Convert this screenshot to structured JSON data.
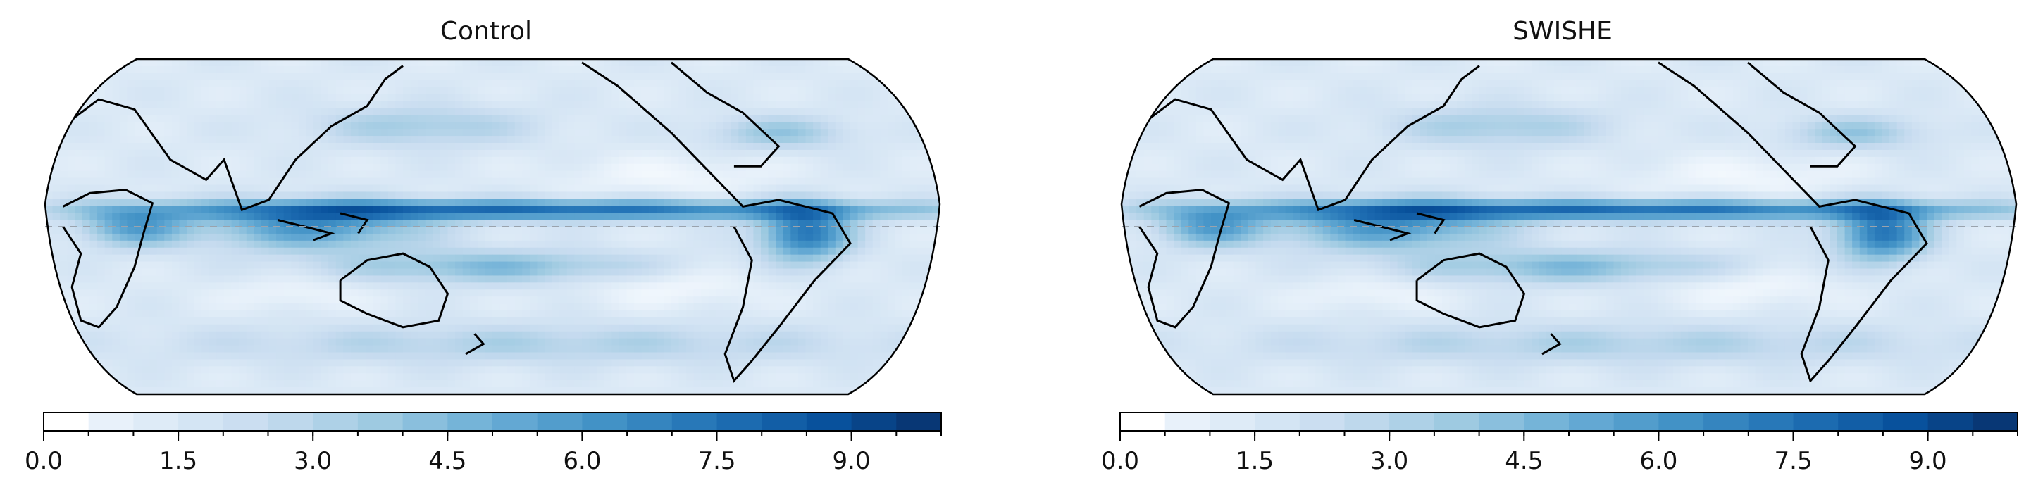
{
  "chart_data": [
    {
      "type": "heatmap",
      "title": "Control",
      "map_projection": "Robinson-like, Pacific-centered",
      "colormap": "Blues",
      "colorbar": {
        "orientation": "horizontal",
        "placement": "bottom",
        "range": [
          0.0,
          10.0
        ],
        "levels": [
          0.0,
          0.5,
          1.0,
          1.5,
          2.0,
          2.5,
          3.0,
          3.5,
          4.0,
          4.5,
          5.0,
          5.5,
          6.0,
          6.5,
          7.0,
          7.5,
          8.0,
          8.5,
          9.0,
          9.5,
          10.0
        ],
        "tick_labels": [
          "0.0",
          "1.5",
          "3.0",
          "4.5",
          "6.0",
          "7.5",
          "9.0"
        ]
      },
      "features": [
        "coastlines",
        "equator dashed line",
        "ITCZ high band",
        "SPCZ"
      ]
    },
    {
      "type": "heatmap",
      "title": "SWISHE",
      "map_projection": "Robinson-like, Pacific-centered",
      "colormap": "Blues",
      "colorbar": {
        "orientation": "horizontal",
        "placement": "bottom",
        "range": [
          0.0,
          10.0
        ],
        "levels": [
          0.0,
          0.5,
          1.0,
          1.5,
          2.0,
          2.5,
          3.0,
          3.5,
          4.0,
          4.5,
          5.0,
          5.5,
          6.0,
          6.5,
          7.0,
          7.5,
          8.0,
          8.5,
          9.0,
          9.5,
          10.0
        ],
        "tick_labels": [
          "0.0",
          "1.5",
          "3.0",
          "4.5",
          "6.0",
          "7.5",
          "9.0"
        ]
      },
      "features": [
        "coastlines",
        "equator dashed line",
        "ITCZ high band",
        "SPCZ"
      ]
    }
  ]
}
